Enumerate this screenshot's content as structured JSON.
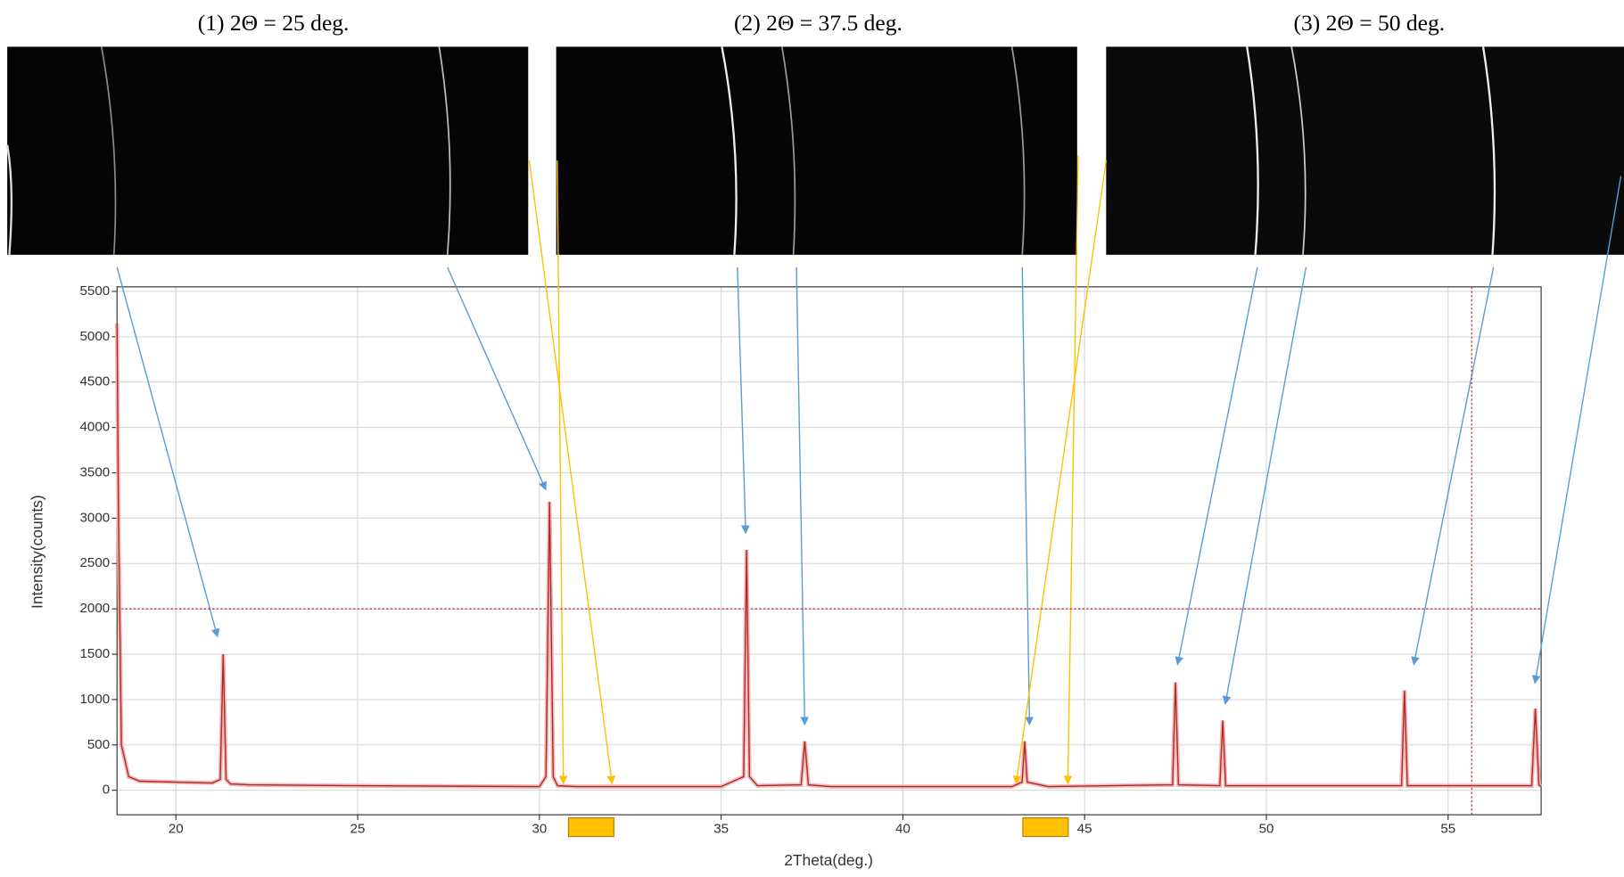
{
  "panels": [
    {
      "title": "(1) 2Θ = 25 deg."
    },
    {
      "title": "(2) 2Θ = 37.5 deg."
    },
    {
      "title": "(3) 2Θ = 50 deg."
    }
  ],
  "chart_data": {
    "type": "line",
    "x_label": "2Theta(deg.)",
    "y_label": "Intensity(counts)",
    "xlim": [
      18.38,
      57.56
    ],
    "ylim": [
      -270,
      5550
    ],
    "xticks": [
      20,
      25,
      30,
      35,
      40,
      45,
      50,
      55
    ],
    "yticks": [
      0,
      500,
      1000,
      1500,
      2000,
      2500,
      3000,
      3500,
      4000,
      4500,
      5000,
      5500
    ],
    "grid": true,
    "threshold_y": 2000,
    "cursor_x": 55.65,
    "ranges": [
      [
        30.8,
        32.05
      ],
      [
        43.3,
        44.55
      ]
    ],
    "series": [
      {
        "color": "#b02a2a",
        "x": [
          18.38,
          18.42,
          18.5,
          18.7,
          19,
          20,
          21,
          21.22,
          21.3,
          21.38,
          21.5,
          22,
          25,
          30,
          30.18,
          30.28,
          30.38,
          30.5,
          31,
          35,
          35.62,
          35.7,
          35.78,
          36,
          37.2,
          37.3,
          37.4,
          38,
          43,
          43.28,
          43.35,
          43.42,
          44,
          47.42,
          47.5,
          47.58,
          48.72,
          48.8,
          48.88,
          53.72,
          53.8,
          53.88,
          57.3,
          57.4,
          57.5,
          57.56
        ],
        "values": [
          5150,
          3000,
          500,
          150,
          100,
          90,
          80,
          120,
          1500,
          120,
          70,
          60,
          50,
          40,
          150,
          3180,
          150,
          50,
          40,
          40,
          150,
          2650,
          150,
          50,
          60,
          540,
          60,
          40,
          40,
          90,
          540,
          90,
          40,
          60,
          1190,
          60,
          50,
          770,
          50,
          50,
          1100,
          50,
          50,
          900,
          60,
          40
        ]
      }
    ]
  }
}
